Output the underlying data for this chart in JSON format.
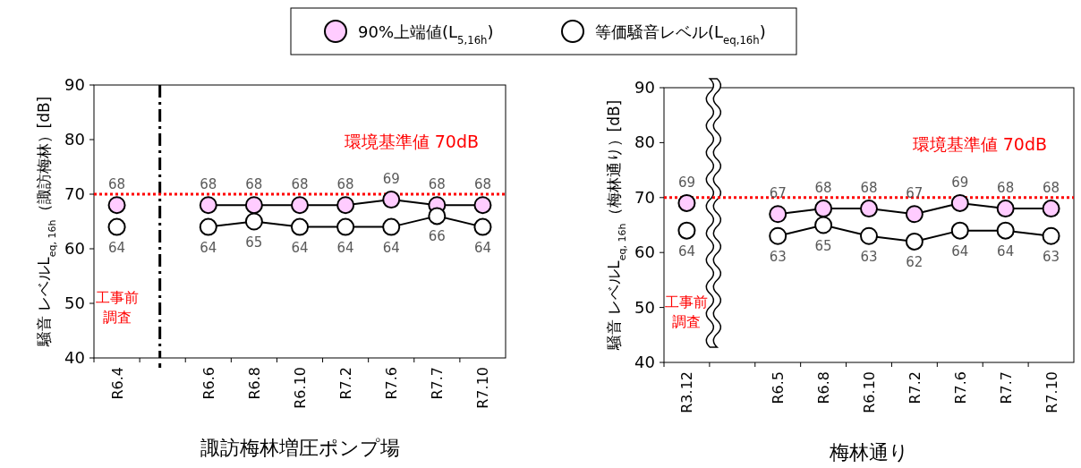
{
  "chart_data": [
    {
      "type": "line",
      "categories": [
        "R6.4",
        null,
        "R6.6",
        "R6.8",
        "R6.10",
        "R7.2",
        "R7.6",
        "R7.7",
        "R7.10"
      ],
      "xlabel": "諏訪梅林増圧ポンプ場",
      "ylabel": "騒音 レベルL$_{eq, 16h}$（諏訪梅林）[dB]",
      "ylim": [
        40,
        90
      ],
      "yticks": [
        40,
        50,
        60,
        70,
        80,
        90
      ],
      "marker": "circle",
      "line_style": "solid",
      "data_labels": true,
      "legend": "top",
      "grid": false,
      "series": [
        {
          "name": "90%上端値(L$_{5,16h}$)",
          "color": "#ffccff",
          "values": [
            68,
            null,
            68,
            68,
            68,
            68,
            69,
            68,
            68
          ]
        },
        {
          "name": "等価騒音レベル(L$_{eq,16h}$)",
          "color": "#ffffff",
          "values": [
            64,
            null,
            64,
            65,
            64,
            64,
            64,
            66,
            64
          ]
        }
      ],
      "ref_lines": [
        {
          "axis": "y",
          "value": 70,
          "label": "環境基準値 70dB",
          "color": "#ff0000",
          "line_style": "dotted"
        }
      ],
      "annotations": [
        "工事前調査"
      ]
    },
    {
      "type": "line",
      "categories": [
        "R3.12",
        null,
        "R6.5",
        "R6.8",
        "R6.10",
        "R7.2",
        "R7.6",
        "R7.7",
        "R7.10"
      ],
      "xlabel": "梅林通り",
      "ylabel": "騒音 レベルL$_{eq, 16h}$（梅林通り）[dB]",
      "ylim": [
        40,
        90
      ],
      "yticks": [
        40,
        50,
        60,
        70,
        80,
        90
      ],
      "marker": "circle",
      "line_style": "solid",
      "data_labels": true,
      "grid": false,
      "series": [
        {
          "color": "#ffccff",
          "values": [
            69,
            null,
            67,
            68,
            68,
            67,
            69,
            68,
            68
          ]
        },
        {
          "color": "#ffffff",
          "values": [
            64,
            null,
            63,
            65,
            63,
            62,
            64,
            64,
            63
          ]
        }
      ],
      "ref_lines": [
        {
          "axis": "y",
          "value": 70,
          "label": "環境基準値 70dB",
          "color": "#ff0000",
          "line_style": "dotted"
        }
      ],
      "annotations": [
        "工事前調査"
      ]
    }
  ]
}
